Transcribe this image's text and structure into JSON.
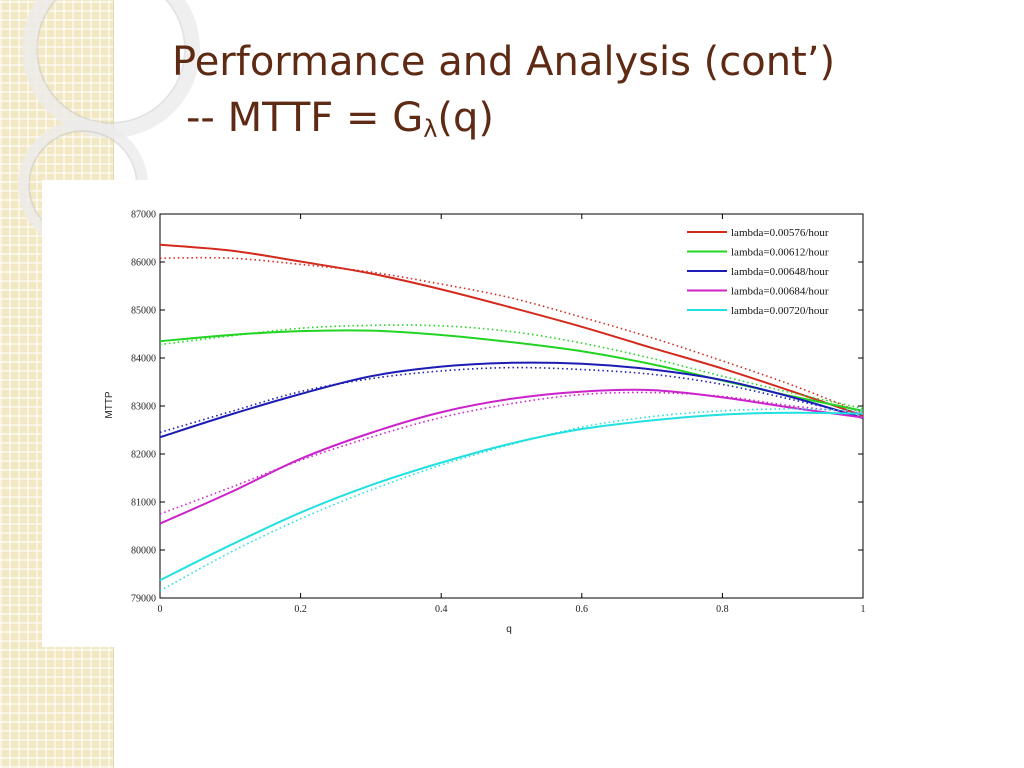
{
  "slide": {
    "title_line1": "Performance and Analysis (cont’)",
    "title_line2_prefix": "-- MTTF =  G",
    "title_line2_sub": "λ",
    "title_line2_suffix": "(q)",
    "title_color": "#5e2a14"
  },
  "chart_data": {
    "type": "line",
    "xlabel": "q",
    "ylabel": "MTTP",
    "xlim": [
      0,
      1
    ],
    "ylim": [
      79000,
      87000
    ],
    "x_ticks": [
      0,
      0.2,
      0.4,
      0.6,
      0.8,
      1
    ],
    "x_tick_labels": [
      "0",
      "0.2",
      "0.4",
      "0.6",
      "0.8",
      "1"
    ],
    "y_ticks": [
      79000,
      80000,
      81000,
      82000,
      83000,
      84000,
      85000,
      86000,
      87000
    ],
    "y_tick_labels": [
      "79000",
      "80000",
      "81000",
      "82000",
      "83000",
      "84000",
      "85000",
      "86000",
      "87000"
    ],
    "grid": false,
    "legend_position": "top-right",
    "x": [
      0,
      0.1,
      0.2,
      0.3,
      0.4,
      0.5,
      0.6,
      0.7,
      0.8,
      0.9,
      1.0
    ],
    "series": [
      {
        "name": "lambda=0.00576/hour",
        "color": "#d42a1e",
        "solid": [
          86360,
          86240,
          86010,
          85760,
          85430,
          85050,
          84650,
          84210,
          83780,
          83300,
          82800
        ],
        "dotted": [
          86080,
          86080,
          85950,
          85790,
          85540,
          85250,
          84850,
          84420,
          83940,
          83430,
          82850
        ]
      },
      {
        "name": "lambda=0.00612/hour",
        "color": "#22d422",
        "solid": [
          84350,
          84480,
          84560,
          84570,
          84480,
          84330,
          84140,
          83870,
          83530,
          83200,
          82900
        ],
        "dotted": [
          84280,
          84460,
          84620,
          84680,
          84670,
          84550,
          84310,
          83990,
          83620,
          83270,
          82950
        ]
      },
      {
        "name": "lambda=0.00648/hour",
        "color": "#1c1cb4",
        "solid": [
          82350,
          82820,
          83250,
          83620,
          83820,
          83900,
          83880,
          83760,
          83540,
          83180,
          82750
        ],
        "dotted": [
          82450,
          82880,
          83300,
          83570,
          83730,
          83800,
          83760,
          83660,
          83450,
          83130,
          82800
        ]
      },
      {
        "name": "lambda=0.00684/hour",
        "color": "#cc22cc",
        "solid": [
          80550,
          81200,
          81900,
          82440,
          82870,
          83150,
          83300,
          83330,
          83180,
          82960,
          82760
        ],
        "dotted": [
          80750,
          81300,
          81870,
          82350,
          82760,
          83050,
          83240,
          83280,
          83200,
          83000,
          82850
        ]
      },
      {
        "name": "lambda=0.00720/hour",
        "color": "#22e0e0",
        "solid": [
          79370,
          80100,
          80780,
          81350,
          81820,
          82220,
          82520,
          82700,
          82820,
          82860,
          82840
        ],
        "dotted": [
          79150,
          79950,
          80650,
          81250,
          81770,
          82200,
          82560,
          82780,
          82900,
          82940,
          82900
        ]
      }
    ]
  }
}
